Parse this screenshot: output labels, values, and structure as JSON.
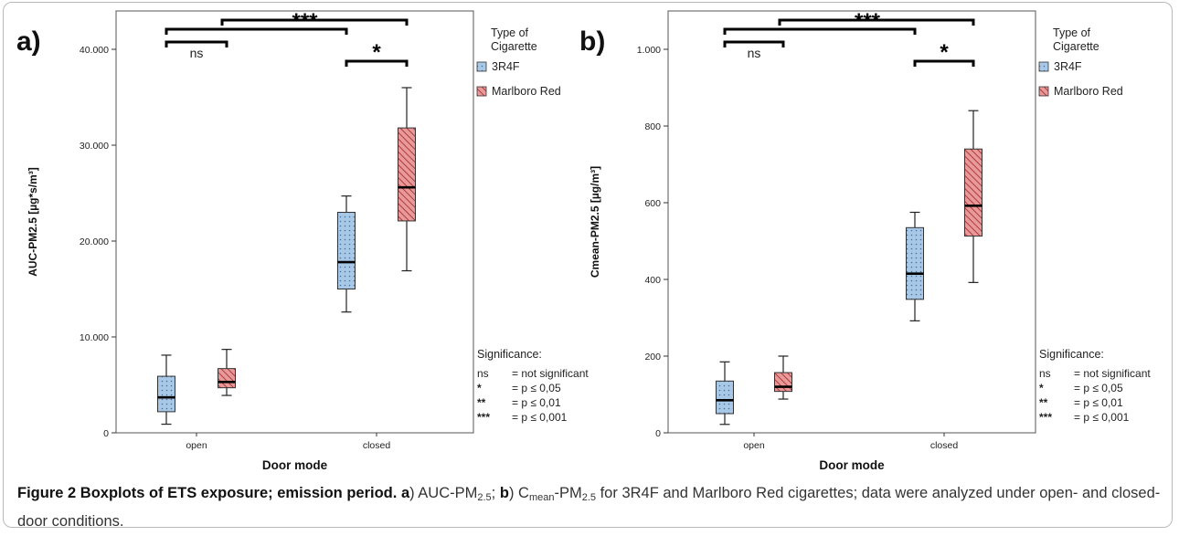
{
  "panels": [
    {
      "panel_label": "a)",
      "ylabel": "AUC-PM2.5 [µg*s/m³]",
      "legend_title": [
        "Type of",
        "Cigarette"
      ],
      "significance_title": "Significance:",
      "significance": [
        {
          "sym": "ns",
          "desc": "= not significant"
        },
        {
          "sym": "*",
          "desc": "= p ≤ 0,05"
        },
        {
          "sym": "**",
          "desc": "= p ≤ 0,01"
        },
        {
          "sym": "***",
          "desc": "= p ≤ 0,001"
        }
      ]
    },
    {
      "panel_label": "b)",
      "ylabel": "Cmean-PM2.5 [µg/m³]",
      "legend_title": [
        "Type of",
        "Cigarette"
      ],
      "significance_title": "Significance:",
      "significance": [
        {
          "sym": "ns",
          "desc": "= not significant"
        },
        {
          "sym": "*",
          "desc": "= p ≤ 0,05"
        },
        {
          "sym": "**",
          "desc": "= p ≤ 0,01"
        },
        {
          "sym": "***",
          "desc": "= p ≤ 0,001"
        }
      ]
    }
  ],
  "caption": {
    "label": "Figure 2",
    "title": "Boxplots of ETS exposure; emission period.",
    "a_letter": "a",
    "a_text": ") AUC-PM",
    "a_sub": "2.5",
    "sep": "; ",
    "b_letter": "b",
    "b_text1": ") C",
    "b_sub1": "mean",
    "b_text2": "-PM",
    "b_sub2": "2.5",
    "rest": " for 3R4F and Marlboro Red cigarettes; data were analyzed under open- and closed-door conditions."
  },
  "chart_data": [
    {
      "type": "box",
      "xlabel": "Door mode",
      "ylabel": "AUC-PM2.5 [µg*s/m³]",
      "categories": [
        "open",
        "closed"
      ],
      "ylim": [
        0,
        44000
      ],
      "yticks": [
        0,
        10000,
        20000,
        30000,
        40000
      ],
      "ytick_labels": [
        "0",
        "10.000",
        "20.000",
        "30.000",
        "40.000"
      ],
      "legend_position": "right",
      "series": [
        {
          "name": "3R4F",
          "color": "#a8c8e8",
          "pattern": "dots",
          "boxes": [
            {
              "min": 900,
              "q1": 2200,
              "median": 3700,
              "q3": 5900,
              "max": 8100
            },
            {
              "min": 12600,
              "q1": 15000,
              "median": 17800,
              "q3": 23000,
              "max": 24700
            }
          ]
        },
        {
          "name": "Marlboro Red",
          "color": "#e89a9a",
          "pattern": "hatch",
          "boxes": [
            {
              "min": 3900,
              "q1": 4700,
              "median": 5300,
              "q3": 6700,
              "max": 8700
            },
            {
              "min": 16900,
              "q1": 22100,
              "median": 25600,
              "q3": 31800,
              "max": 36000
            }
          ]
        }
      ],
      "annotations": [
        {
          "from": "open",
          "to": "closed",
          "label": "***"
        },
        {
          "from": "open-3R4F",
          "to": "open-Marlboro Red",
          "label": "ns"
        },
        {
          "from": "closed-3R4F",
          "to": "closed-Marlboro Red",
          "label": "*"
        }
      ]
    },
    {
      "type": "box",
      "xlabel": "Door mode",
      "ylabel": "Cmean-PM2.5 [µg/m³]",
      "categories": [
        "open",
        "closed"
      ],
      "ylim": [
        0,
        1100
      ],
      "yticks": [
        0,
        200,
        400,
        600,
        800,
        1000
      ],
      "ytick_labels": [
        "0",
        "200",
        "400",
        "600",
        "800",
        "1.000"
      ],
      "legend_position": "right",
      "series": [
        {
          "name": "3R4F",
          "color": "#a8c8e8",
          "pattern": "dots",
          "boxes": [
            {
              "min": 22,
              "q1": 50,
              "median": 85,
              "q3": 135,
              "max": 185
            },
            {
              "min": 292,
              "q1": 348,
              "median": 415,
              "q3": 535,
              "max": 575
            }
          ]
        },
        {
          "name": "Marlboro Red",
          "color": "#e89a9a",
          "pattern": "hatch",
          "boxes": [
            {
              "min": 88,
              "q1": 108,
              "median": 120,
              "q3": 157,
              "max": 200
            },
            {
              "min": 392,
              "q1": 513,
              "median": 592,
              "q3": 740,
              "max": 840
            }
          ]
        }
      ],
      "annotations": [
        {
          "from": "open",
          "to": "closed",
          "label": "***"
        },
        {
          "from": "open-3R4F",
          "to": "open-Marlboro Red",
          "label": "ns"
        },
        {
          "from": "closed-3R4F",
          "to": "closed-Marlboro Red",
          "label": "*"
        }
      ]
    }
  ]
}
